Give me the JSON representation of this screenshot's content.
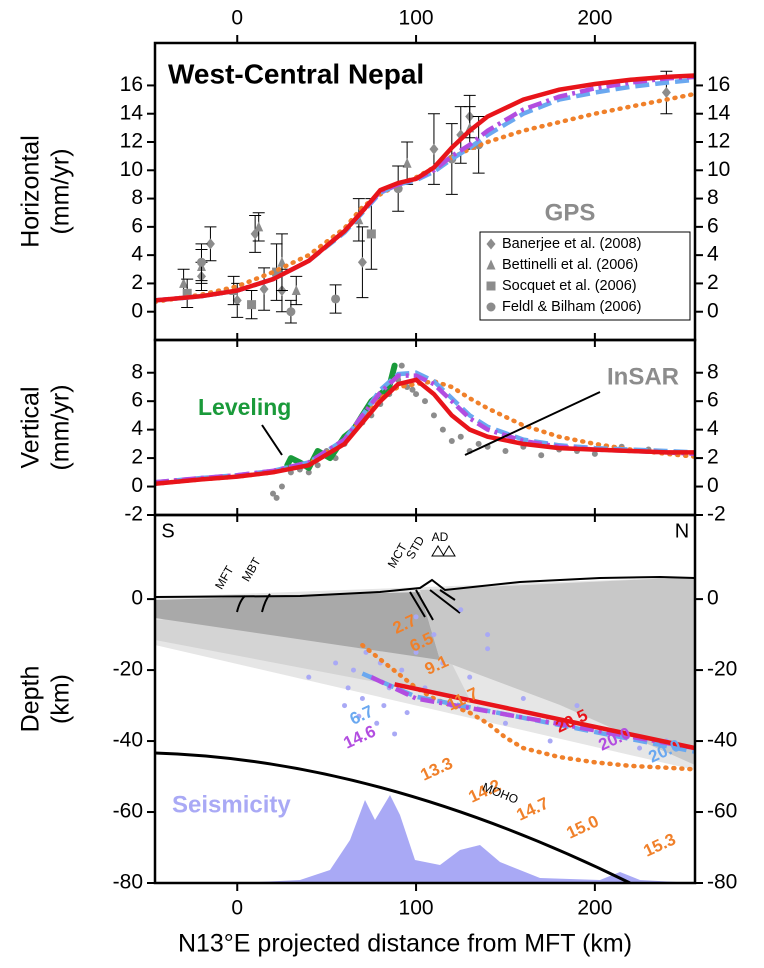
{
  "chart_data": [
    {
      "type": "line",
      "title": "West-Central Nepal",
      "ylabel": [
        "Horizontal",
        "(mm/yr)"
      ],
      "annotation": "GPS",
      "xlim": [
        -46,
        256
      ],
      "xticks": [
        0,
        100,
        200
      ],
      "ylim": [
        -2,
        19
      ],
      "yticks": [
        0,
        2,
        4,
        6,
        8,
        10,
        12,
        14,
        16
      ],
      "x": [
        -46,
        -20,
        0,
        20,
        40,
        60,
        70,
        80,
        90,
        100,
        110,
        120,
        130,
        140,
        160,
        180,
        200,
        220,
        240,
        256
      ],
      "series": [
        {
          "color": "#f0802a",
          "style": "dotted",
          "values": [
            0.7,
            1.2,
            1.8,
            2.8,
            4.0,
            5.9,
            7.4,
            8.3,
            9.0,
            9.5,
            10.2,
            10.9,
            11.5,
            12.0,
            12.8,
            13.4,
            14.0,
            14.5,
            15.0,
            15.4
          ]
        },
        {
          "color": "#6aa8f0",
          "style": "dashed",
          "values": [
            0.8,
            1.1,
            1.5,
            2.3,
            3.6,
            5.6,
            7.0,
            8.4,
            9.0,
            9.3,
            9.9,
            10.8,
            11.6,
            12.5,
            14.0,
            15.0,
            15.5,
            15.9,
            16.2,
            16.4
          ]
        },
        {
          "color": "#b24de0",
          "style": "dashdot",
          "values": [
            0.8,
            1.1,
            1.5,
            2.3,
            3.6,
            5.7,
            7.1,
            8.5,
            9.0,
            9.4,
            10.0,
            11.0,
            11.8,
            12.8,
            14.3,
            15.2,
            15.8,
            16.2,
            16.5,
            16.6
          ]
        },
        {
          "color": "#e8141a",
          "style": "solid",
          "values": [
            0.8,
            1.1,
            1.5,
            2.3,
            3.6,
            5.7,
            7.1,
            8.6,
            9.1,
            9.4,
            10.2,
            11.6,
            12.8,
            13.8,
            15.0,
            15.7,
            16.1,
            16.4,
            16.6,
            16.7
          ]
        }
      ],
      "points": [
        {
          "name": "Banerjee et al. (2008)",
          "marker": "diamond",
          "color": "#8c8c8c",
          "x": [
            -20,
            -15,
            0,
            10,
            15,
            25,
            70,
            110,
            125,
            130,
            240
          ],
          "values": [
            2.5,
            4.8,
            0.8,
            5.5,
            1.6,
            1.5,
            3.5,
            11.5,
            12.5,
            13.8,
            15.5
          ],
          "errors": [
            1,
            1.2,
            1.2,
            1.3,
            1.5,
            1.5,
            2.5,
            2.5,
            2,
            1.5,
            1.5
          ]
        },
        {
          "name": "Bettinelli et al. (2006)",
          "marker": "triangle",
          "color": "#8c8c8c",
          "x": [
            -30,
            -20,
            -2,
            12,
            25,
            33,
            68,
            95,
            130
          ],
          "values": [
            2,
            3.2,
            1.5,
            6,
            3.5,
            1.5,
            6.5,
            10.5,
            13
          ],
          "errors": [
            1,
            1.2,
            1,
            1,
            2,
            1,
            1.5,
            1.5,
            1.5
          ]
        },
        {
          "name": "Socquet et al. (2006)",
          "marker": "square",
          "color": "#8c8c8c",
          "x": [
            -28,
            8,
            22,
            75
          ],
          "values": [
            1.3,
            0.5,
            2.8,
            5.5
          ],
          "errors": [
            1,
            1,
            2,
            2.5
          ]
        },
        {
          "name": "Feldl & Bilham (2006)",
          "marker": "circle",
          "color": "#8c8c8c",
          "x": [
            -20,
            30,
            55,
            90,
            120,
            135
          ],
          "values": [
            3.5,
            0,
            0.9,
            8.7,
            10.8,
            11.8
          ],
          "errors": [
            1.3,
            0.8,
            1,
            1.6,
            2.5,
            2
          ]
        }
      ],
      "legend": "lower right"
    },
    {
      "type": "line",
      "ylabel": [
        "Vertical",
        "(mm/yr)"
      ],
      "xlim": [
        -46,
        256
      ],
      "xticks": [
        0,
        100,
        200
      ],
      "ylim": [
        -2,
        10.3
      ],
      "yticks": [
        -2,
        0,
        2,
        4,
        6,
        8
      ],
      "x": [
        -46,
        -20,
        0,
        20,
        40,
        60,
        70,
        80,
        90,
        100,
        110,
        120,
        130,
        140,
        160,
        180,
        200,
        220,
        240,
        256
      ],
      "insar": {
        "name": "InSAR",
        "color": "#8c8c8c",
        "x": [
          20,
          22,
          25,
          30,
          35,
          40,
          45,
          50,
          55,
          60,
          65,
          70,
          75,
          80,
          85,
          90,
          92,
          95,
          98,
          100,
          105,
          110,
          115,
          120,
          125,
          130,
          135,
          140,
          150,
          160,
          170,
          180,
          190,
          200,
          215,
          230,
          245
        ],
        "values": [
          -0.5,
          -0.8,
          0,
          1,
          1.2,
          1,
          1.5,
          2.5,
          2,
          3,
          4,
          4.5,
          5,
          5.8,
          6.5,
          7.5,
          8.5,
          7,
          6.8,
          6.5,
          6,
          5,
          4,
          3.2,
          3.5,
          2.5,
          3,
          2.8,
          2.5,
          2.8,
          2.2,
          2.6,
          2.5,
          2.3,
          2.8,
          2.6,
          2.4
        ]
      },
      "leveling": {
        "name": "Leveling",
        "color": "#1a9a3a",
        "x": [
          28,
          30,
          35,
          40,
          45,
          52,
          60,
          65,
          70,
          75,
          80,
          85,
          88
        ],
        "values": [
          1.5,
          2,
          1.7,
          1.3,
          2.5,
          2,
          3.5,
          4,
          5,
          6,
          6.5,
          7,
          8.5
        ]
      },
      "series": [
        {
          "color": "#f0802a",
          "style": "dotted",
          "values": [
            0.2,
            0.5,
            0.7,
            1,
            1.6,
            3.2,
            4.8,
            6.2,
            7,
            7.2,
            7.4,
            7,
            6.2,
            5.5,
            4.3,
            3.5,
            3,
            2.6,
            2.3,
            2.1
          ]
        },
        {
          "color": "#6aa8f0",
          "style": "dashed",
          "values": [
            0.3,
            0.6,
            0.8,
            1.1,
            1.7,
            3.3,
            5,
            6.8,
            7.9,
            8,
            7.4,
            6.2,
            5,
            4.2,
            3.3,
            2.9,
            2.7,
            2.6,
            2.5,
            2.4
          ]
        },
        {
          "color": "#b24de0",
          "style": "dashdot",
          "values": [
            0.3,
            0.6,
            0.8,
            1.1,
            1.7,
            3.3,
            5,
            6.6,
            7.8,
            7.8,
            7.2,
            6,
            4.8,
            4,
            3.2,
            2.8,
            2.6,
            2.5,
            2.4,
            2.3
          ]
        },
        {
          "color": "#e8141a",
          "style": "solid",
          "values": [
            0.2,
            0.5,
            0.7,
            1.0,
            1.5,
            3,
            4.5,
            6,
            7.2,
            7.5,
            6.5,
            5,
            4,
            3.5,
            3,
            2.7,
            2.6,
            2.5,
            2.4,
            2.4
          ]
        }
      ]
    },
    {
      "type": "line",
      "ylabel": [
        "Depth",
        "(km)"
      ],
      "xlabel": "N13°E projected distance from MFT (km)",
      "xlim": [
        -46,
        256
      ],
      "xticks": [
        0,
        100,
        200
      ],
      "ylim": [
        -80,
        23.7
      ],
      "yticks": [
        -80,
        -60,
        -40,
        -20,
        0
      ],
      "series": [
        {
          "color": "#f0802a",
          "style": "dotted",
          "x": [
            70,
            80,
            90,
            100,
            110,
            120,
            130,
            140,
            150,
            160,
            180,
            200,
            220,
            240,
            256
          ],
          "values": [
            -13,
            -17,
            -21,
            -25,
            -28,
            -30,
            -32,
            -35,
            -39,
            -42,
            -44.5,
            -46,
            -47,
            -47.5,
            -48
          ],
          "labels": [
            "2.7",
            "6.5",
            "9.1",
            "11.7",
            "13.3",
            "14.2",
            "14.7",
            "15.0",
            "15.3"
          ]
        },
        {
          "color": "#6aa8f0",
          "style": "dashed",
          "x": [
            70,
            100,
            256
          ],
          "values": [
            -21,
            -27.5,
            -43
          ],
          "labels": [
            "6.7",
            "20.0"
          ]
        },
        {
          "color": "#b24de0",
          "style": "dashdot",
          "x": [
            75,
            100,
            256
          ],
          "values": [
            -22,
            -28,
            -42
          ],
          "labels": [
            "14.6",
            "20.0"
          ]
        },
        {
          "color": "#e8141a",
          "style": "solid",
          "x": [
            88,
            256
          ],
          "values": [
            -24,
            -42
          ],
          "labels": [
            "20.5"
          ]
        }
      ],
      "seismicity": {
        "name": "Seismicity",
        "color": "#a9a9f5",
        "x": [
          40,
          55,
          60,
          62,
          65,
          68,
          70,
          72,
          75,
          78,
          80,
          82,
          85,
          88,
          92,
          95,
          100,
          105,
          110,
          115,
          120,
          130,
          140,
          150,
          160,
          175,
          190,
          210,
          225,
          240,
          100,
          125,
          140
        ],
        "values": [
          -22,
          -18,
          -30,
          -25,
          -20,
          -33,
          -28,
          -15,
          -22,
          -35,
          -18,
          -30,
          -25,
          -38,
          -20,
          -32,
          -15,
          -25,
          -10,
          -18,
          -30,
          -22,
          -14,
          -35,
          -28,
          -40,
          -30,
          -38,
          -42,
          -40,
          -5,
          -3,
          -10
        ]
      },
      "annotations": {
        "south": "S",
        "north": "N",
        "faults": [
          "MFT",
          "MBT",
          "MCT",
          "STD"
        ],
        "ad": "AD",
        "moho": "MOHO"
      }
    }
  ]
}
